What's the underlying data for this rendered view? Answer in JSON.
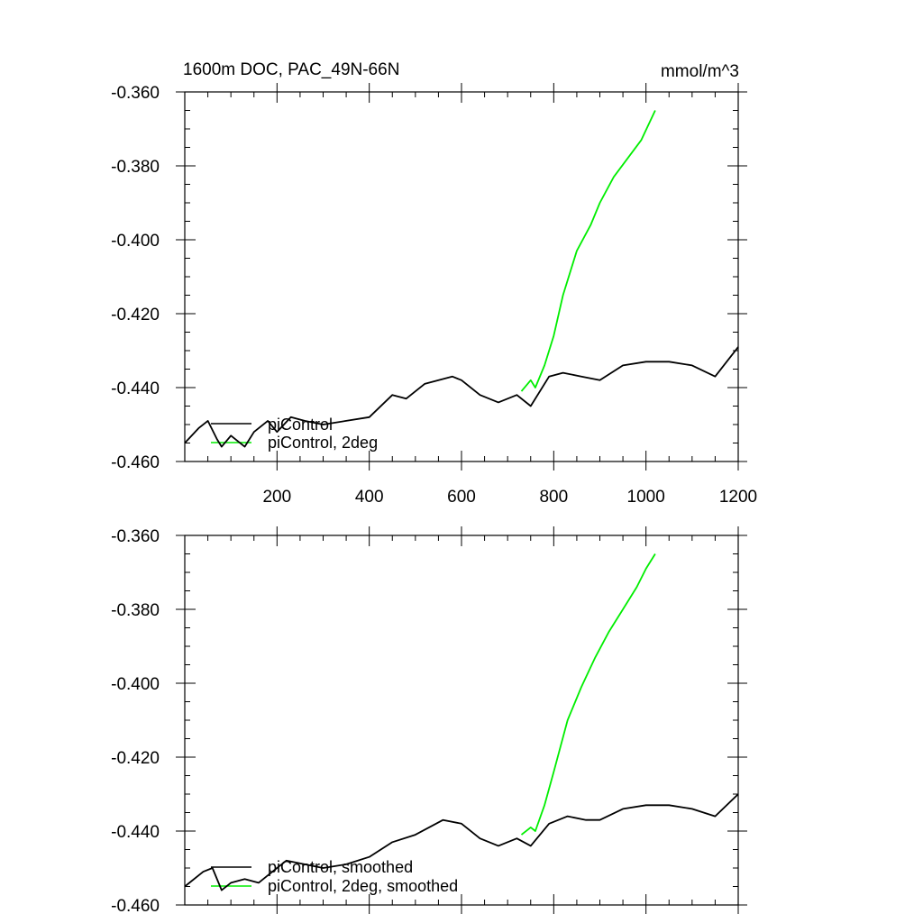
{
  "header": {
    "title": "1600m DOC, PAC_49N-66N",
    "units": "mmol/m^3"
  },
  "colors": {
    "control": "#000000",
    "twodeg": "#00ee00"
  },
  "chart_data": [
    {
      "type": "line",
      "xlim": [
        0,
        1200
      ],
      "ylim": [
        -0.46,
        -0.36
      ],
      "xticks": [
        200,
        400,
        600,
        800,
        1000,
        1200
      ],
      "xticklabels": [
        "200",
        "400",
        "600",
        "800",
        "1000",
        "1200"
      ],
      "yticks": [
        -0.36,
        -0.38,
        -0.4,
        -0.42,
        -0.44,
        -0.46
      ],
      "yticklabels": [
        "-0.360",
        "-0.380",
        "-0.400",
        "-0.420",
        "-0.440",
        "-0.460"
      ],
      "legend": "bottom-left",
      "series": [
        {
          "name": "piControl",
          "color": "#000000",
          "x": [
            0,
            30,
            50,
            70,
            80,
            100,
            130,
            150,
            180,
            200,
            230,
            260,
            300,
            350,
            400,
            450,
            480,
            520,
            580,
            600,
            640,
            680,
            720,
            750,
            790,
            820,
            860,
            900,
            950,
            1000,
            1050,
            1100,
            1150,
            1200
          ],
          "y": [
            -0.455,
            -0.451,
            -0.449,
            -0.454,
            -0.456,
            -0.453,
            -0.456,
            -0.452,
            -0.449,
            -0.452,
            -0.448,
            -0.449,
            -0.45,
            -0.449,
            -0.448,
            -0.442,
            -0.443,
            -0.439,
            -0.437,
            -0.438,
            -0.442,
            -0.444,
            -0.442,
            -0.445,
            -0.437,
            -0.436,
            -0.437,
            -0.438,
            -0.434,
            -0.433,
            -0.433,
            -0.434,
            -0.437,
            -0.429
          ]
        },
        {
          "name": "piControl, 2deg",
          "color": "#00ee00",
          "x": [
            730,
            750,
            760,
            780,
            800,
            820,
            850,
            880,
            900,
            930,
            960,
            990,
            1020
          ],
          "y": [
            -0.441,
            -0.438,
            -0.44,
            -0.434,
            -0.426,
            -0.415,
            -0.403,
            -0.396,
            -0.39,
            -0.383,
            -0.378,
            -0.373,
            -0.365
          ]
        }
      ]
    },
    {
      "type": "line",
      "xlim": [
        0,
        1200
      ],
      "ylim": [
        -0.46,
        -0.36
      ],
      "xticks": [
        200,
        400,
        600,
        800,
        1000,
        1200
      ],
      "yticks": [
        -0.36,
        -0.38,
        -0.4,
        -0.42,
        -0.44,
        -0.46
      ],
      "yticklabels": [
        "-0.360",
        "-0.380",
        "-0.400",
        "-0.420",
        "-0.440",
        "-0.460"
      ],
      "legend": "bottom-left",
      "series": [
        {
          "name": "piControl, smoothed",
          "color": "#000000",
          "x": [
            0,
            40,
            60,
            80,
            100,
            130,
            160,
            190,
            220,
            260,
            300,
            350,
            400,
            450,
            500,
            560,
            600,
            640,
            680,
            720,
            750,
            790,
            830,
            870,
            900,
            950,
            1000,
            1050,
            1100,
            1150,
            1200
          ],
          "y": [
            -0.455,
            -0.451,
            -0.45,
            -0.456,
            -0.454,
            -0.453,
            -0.454,
            -0.451,
            -0.448,
            -0.449,
            -0.45,
            -0.449,
            -0.447,
            -0.443,
            -0.441,
            -0.437,
            -0.438,
            -0.442,
            -0.444,
            -0.442,
            -0.444,
            -0.438,
            -0.436,
            -0.437,
            -0.437,
            -0.434,
            -0.433,
            -0.433,
            -0.434,
            -0.436,
            -0.43
          ]
        },
        {
          "name": "piControl, 2deg, smoothed",
          "color": "#00ee00",
          "x": [
            730,
            750,
            760,
            780,
            800,
            830,
            860,
            890,
            920,
            950,
            980,
            1000,
            1020
          ],
          "y": [
            -0.441,
            -0.439,
            -0.44,
            -0.433,
            -0.424,
            -0.41,
            -0.401,
            -0.393,
            -0.386,
            -0.38,
            -0.374,
            -0.369,
            -0.365
          ]
        }
      ]
    }
  ]
}
